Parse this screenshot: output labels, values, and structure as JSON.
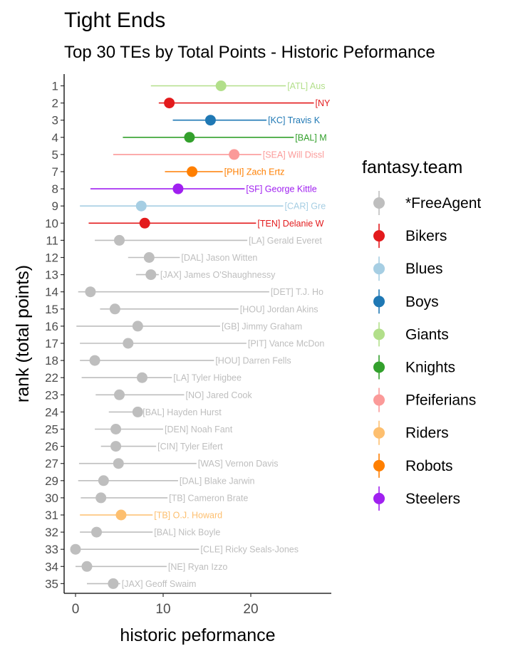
{
  "chart_data": {
    "type": "scatter",
    "title": "Tight Ends",
    "subtitle": "Top 30 TEs by Total Points - Historic Peformance",
    "xlabel": "historic peformance",
    "ylabel": "rank (total points)",
    "xlim": [
      -1.2,
      28.5
    ],
    "xticks": [
      0,
      10,
      20
    ],
    "grid": false,
    "legend": {
      "title": "fantasy.team",
      "placement": "right",
      "entries": [
        {
          "name": "*FreeAgent",
          "color": "#bebebe"
        },
        {
          "name": "Bikers",
          "color": "#e31a1c"
        },
        {
          "name": "Blues",
          "color": "#a6cee3"
        },
        {
          "name": "Boys",
          "color": "#1f78b4"
        },
        {
          "name": "Giants",
          "color": "#b2df8a"
        },
        {
          "name": "Knights",
          "color": "#33a02c"
        },
        {
          "name": "Pfeiferians",
          "color": "#fb9a99"
        },
        {
          "name": "Riders",
          "color": "#fdbf6f"
        },
        {
          "name": "Robots",
          "color": "#ff7f00"
        },
        {
          "name": "Steelers",
          "color": "#a020f0"
        }
      ]
    },
    "points": [
      {
        "rank": "1",
        "value": 16.6,
        "low": 8.6,
        "high": 24.0,
        "label": "[ATL] Aus",
        "team": "Giants"
      },
      {
        "rank": "2",
        "value": 10.7,
        "low": 9.5,
        "high": 27.2,
        "label": "[NY",
        "team": "Bikers"
      },
      {
        "rank": "3",
        "value": 15.4,
        "low": 11.1,
        "high": 21.8,
        "label": "[KC] Travis K",
        "team": "Boys"
      },
      {
        "rank": "4",
        "value": 13.0,
        "low": 5.4,
        "high": 24.9,
        "label": "[BAL] M",
        "team": "Knights"
      },
      {
        "rank": "5",
        "value": 18.1,
        "low": 4.3,
        "high": 21.2,
        "label": "[SEA] Will Dissl",
        "team": "Pfeiferians"
      },
      {
        "rank": "7",
        "value": 13.3,
        "low": 10.2,
        "high": 16.8,
        "label": "[PHI] Zach Ertz",
        "team": "Robots"
      },
      {
        "rank": "8",
        "value": 11.7,
        "low": 1.7,
        "high": 19.3,
        "label": "[SF] George Kittle",
        "team": "Steelers"
      },
      {
        "rank": "9",
        "value": 7.5,
        "low": 0.5,
        "high": 23.7,
        "label": "[CAR] Gre",
        "team": "Blues"
      },
      {
        "rank": "10",
        "value": 7.9,
        "low": 1.5,
        "high": 20.6,
        "label": "[TEN] Delanie W",
        "team": "Bikers"
      },
      {
        "rank": "11",
        "value": 5.0,
        "low": 2.2,
        "high": 19.6,
        "label": "[LA] Gerald Everet",
        "team": "*FreeAgent"
      },
      {
        "rank": "12",
        "value": 8.4,
        "low": 6.0,
        "high": 11.9,
        "label": "[DAL] Jason Witten",
        "team": "*FreeAgent"
      },
      {
        "rank": "13",
        "value": 8.6,
        "low": 6.9,
        "high": 9.5,
        "label": "[JAX] James O'Shaughnessy",
        "team": "*FreeAgent"
      },
      {
        "rank": "14",
        "value": 1.7,
        "low": 0.3,
        "high": 22.1,
        "label": "[DET] T.J. Ho",
        "team": "*FreeAgent"
      },
      {
        "rank": "15",
        "value": 4.5,
        "low": 2.8,
        "high": 18.6,
        "label": "[HOU] Jordan Akins",
        "team": "*FreeAgent"
      },
      {
        "rank": "16",
        "value": 7.1,
        "low": 0.1,
        "high": 16.5,
        "label": "[GB] Jimmy Graham",
        "team": "*FreeAgent"
      },
      {
        "rank": "17",
        "value": 6.0,
        "low": 0.5,
        "high": 19.5,
        "label": "[PIT] Vance McDon",
        "team": "*FreeAgent"
      },
      {
        "rank": "18",
        "value": 2.2,
        "low": 0.5,
        "high": 15.8,
        "label": "[HOU] Darren Fells",
        "team": "*FreeAgent"
      },
      {
        "rank": "22",
        "value": 7.6,
        "low": 0.7,
        "high": 11.0,
        "label": "[LA] Tyler Higbee",
        "team": "*FreeAgent"
      },
      {
        "rank": "23",
        "value": 5.0,
        "low": 2.3,
        "high": 12.4,
        "label": "[NO] Jared Cook",
        "team": "*FreeAgent"
      },
      {
        "rank": "24",
        "value": 7.1,
        "low": 3.8,
        "high": 7.5,
        "label": "[BAL] Hayden Hurst",
        "team": "*FreeAgent"
      },
      {
        "rank": "25",
        "value": 4.6,
        "low": 2.2,
        "high": 10.0,
        "label": "[DEN] Noah Fant",
        "team": "*FreeAgent"
      },
      {
        "rank": "26",
        "value": 4.6,
        "low": 2.9,
        "high": 9.2,
        "label": "[CIN] Tyler Eifert",
        "team": "*FreeAgent"
      },
      {
        "rank": "27",
        "value": 4.9,
        "low": 0.4,
        "high": 13.8,
        "label": "[WAS] Vernon Davis",
        "team": "*FreeAgent"
      },
      {
        "rank": "29",
        "value": 3.2,
        "low": 0.3,
        "high": 11.7,
        "label": "[DAL] Blake Jarwin",
        "team": "*FreeAgent"
      },
      {
        "rank": "30",
        "value": 2.9,
        "low": 0.6,
        "high": 10.5,
        "label": "[TB] Cameron Brate",
        "team": "*FreeAgent"
      },
      {
        "rank": "31",
        "value": 5.2,
        "low": 0.5,
        "high": 8.8,
        "label": "[TB] O.J. Howard",
        "team": "Riders"
      },
      {
        "rank": "32",
        "value": 2.4,
        "low": 0.5,
        "high": 8.8,
        "label": "[BAL] Nick Boyle",
        "team": "*FreeAgent"
      },
      {
        "rank": "33",
        "value": 0.0,
        "low": 0.0,
        "high": 14.1,
        "label": "[CLE] Ricky Seals-Jones",
        "team": "*FreeAgent"
      },
      {
        "rank": "34",
        "value": 1.3,
        "low": 0.0,
        "high": 10.4,
        "label": "[NE] Ryan Izzo",
        "team": "*FreeAgent"
      },
      {
        "rank": "35",
        "value": 4.3,
        "low": 1.3,
        "high": 5.1,
        "label": "[JAX] Geoff Swaim",
        "team": "*FreeAgent"
      }
    ]
  }
}
